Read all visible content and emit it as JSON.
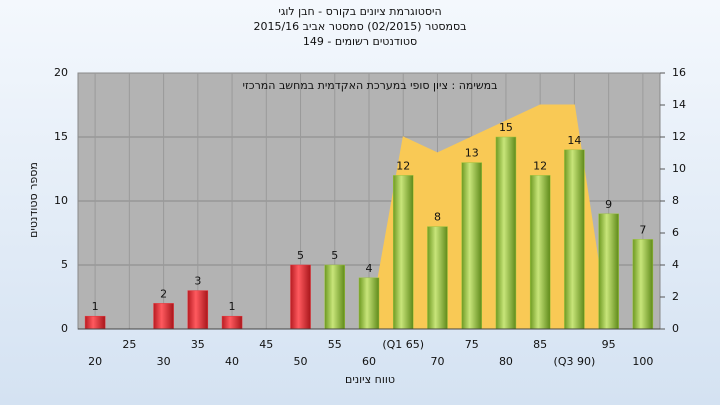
{
  "chart_data": {
    "type": "bar",
    "title": "היסטוגרמת ציונים בקורס - חבן לוגי",
    "subtitles": [
      "בסמסטר  (02/2015)  סמסטר אביב 2015/16",
      "סטודנטים רשומים - 149"
    ],
    "annotation": "במשימה : ציון סופי במערכת האקדמית במחשב המרכזי",
    "x_label": "טווח ציונים",
    "y_label": "מספר סטודנטים",
    "categories": [
      "20",
      "25",
      "30",
      "35",
      "40",
      "45",
      "50",
      "55",
      "60",
      "(Q1 65)",
      "70",
      "75",
      "80",
      "85",
      "(Q3 90)",
      "95",
      "100"
    ],
    "series": [
      {
        "color": "#e8333a",
        "values": [
          1,
          null,
          2,
          3,
          1,
          null,
          5,
          null,
          null,
          null,
          null,
          null,
          null,
          null,
          null,
          null,
          null
        ]
      },
      {
        "color": "#9cc43c",
        "values": [
          null,
          null,
          null,
          null,
          null,
          null,
          null,
          5,
          4,
          12,
          8,
          13,
          15,
          12,
          14,
          9,
          7
        ]
      },
      {
        "type": "area",
        "axis": "y2",
        "color": "#f9c955",
        "values": [
          null,
          null,
          null,
          null,
          null,
          null,
          null,
          null,
          0,
          12,
          11,
          12,
          13,
          14,
          14,
          0,
          null
        ]
      }
    ],
    "ylim": [
      0,
      20
    ],
    "yticks": [
      0,
      5,
      10,
      15,
      20
    ],
    "y2lim": [
      0,
      16
    ],
    "y2ticks": [
      0,
      2,
      4,
      6,
      8,
      10,
      12,
      14,
      16
    ],
    "grid": true
  }
}
